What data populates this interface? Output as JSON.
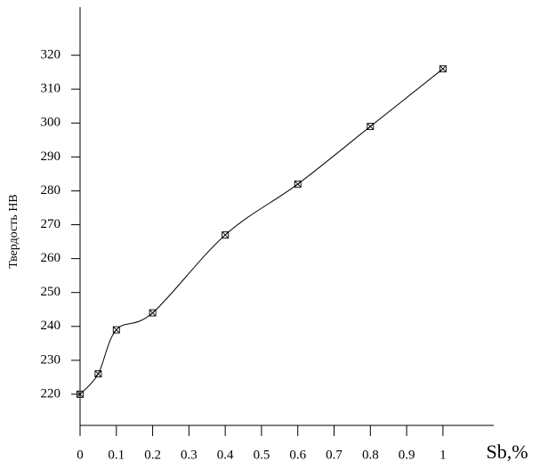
{
  "chart_data": {
    "type": "line",
    "y_label": "Твердость НВ",
    "x_label": "Sb,%",
    "x": [
      0,
      0.05,
      0.1,
      0.2,
      0.4,
      0.6,
      0.8,
      1
    ],
    "series": [
      {
        "color": "#000000",
        "values": [
          220,
          226,
          239,
          244,
          267,
          282,
          299,
          316
        ]
      }
    ],
    "xlim": [
      0,
      1.14
    ],
    "ylim": [
      210.8,
      334.2
    ],
    "xticks": [
      0,
      0.1,
      0.2,
      0.3,
      0.4,
      0.5,
      0.6,
      0.7,
      0.8,
      0.9,
      1
    ],
    "yticks": [
      220,
      230,
      240,
      250,
      260,
      270,
      280,
      290,
      300,
      310,
      320
    ]
  }
}
